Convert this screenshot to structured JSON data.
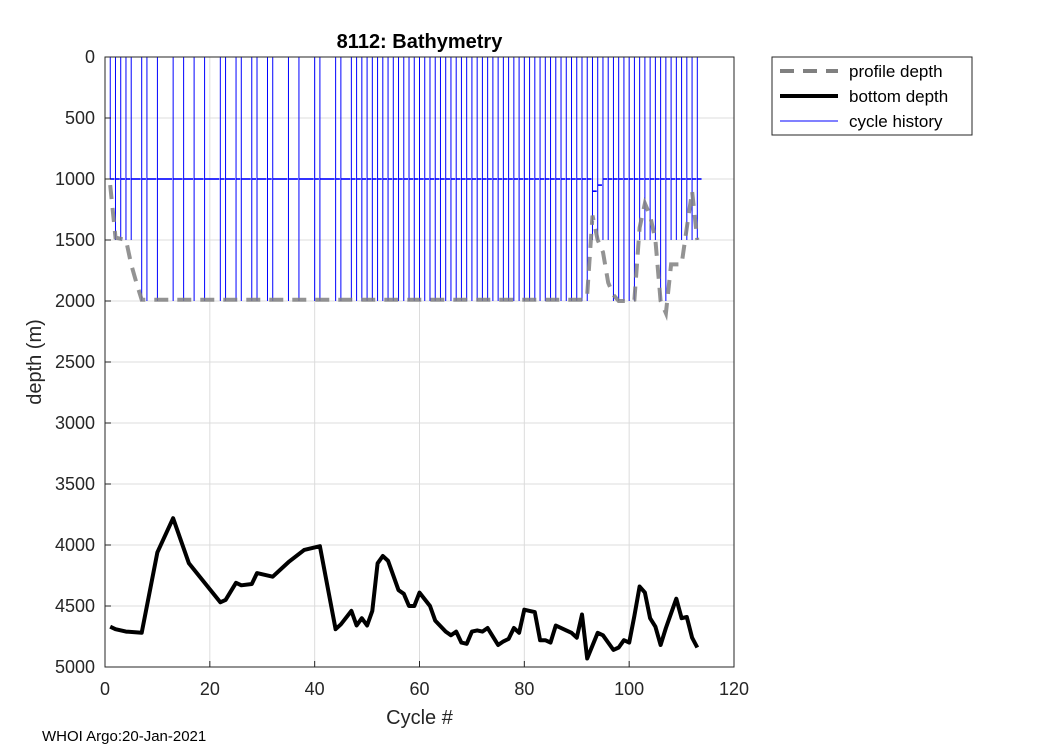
{
  "chart_data": {
    "type": "line",
    "title": "8112: Bathymetry",
    "xlabel": "Cycle #",
    "ylabel": "depth (m)",
    "xlim": [
      0,
      120
    ],
    "ylim": [
      0,
      5000
    ],
    "y_reversed": true,
    "grid": true,
    "xticks": [
      0,
      20,
      40,
      60,
      80,
      100,
      120
    ],
    "yticks": [
      0,
      500,
      1000,
      1500,
      2000,
      2500,
      3000,
      3500,
      4000,
      4500,
      5000
    ],
    "colors": {
      "profile": "#808080",
      "bottom": "#000000",
      "cycle": "#0000ff"
    },
    "series": [
      {
        "name": "profile depth",
        "style": "dashed",
        "x": [
          1,
          2,
          3,
          4,
          5,
          6,
          7,
          8,
          10,
          13,
          20,
          25,
          30,
          35,
          40,
          45,
          50,
          55,
          60,
          65,
          70,
          75,
          80,
          85,
          90,
          91.5,
          92,
          93,
          94,
          95,
          96,
          97,
          98,
          99,
          100,
          101,
          102,
          103,
          104,
          105,
          106,
          107,
          108,
          109,
          110,
          111,
          112,
          113
        ],
        "values": [
          1050,
          1480,
          1490,
          1500,
          1700,
          1850,
          1990,
          1990,
          1990,
          1990,
          1990,
          1990,
          1990,
          1990,
          1990,
          1990,
          1990,
          1990,
          1990,
          1990,
          1990,
          1990,
          1990,
          1990,
          1990,
          1990,
          1950,
          1300,
          1500,
          1600,
          1850,
          1950,
          2000,
          2000,
          2000,
          1990,
          1400,
          1200,
          1300,
          1500,
          2000,
          2100,
          1700,
          1700,
          1700,
          1400,
          1100,
          1500
        ]
      },
      {
        "name": "bottom depth",
        "style": "solid",
        "x": [
          1,
          2,
          4,
          7,
          10,
          13,
          16,
          22,
          23,
          25,
          26,
          28,
          29,
          32,
          35,
          38,
          41,
          44,
          45,
          47,
          48,
          49,
          50,
          51,
          52,
          53,
          54,
          56,
          57,
          58,
          59,
          60,
          62,
          63,
          65,
          66,
          67,
          68,
          69,
          70,
          71,
          72,
          73,
          75,
          76,
          77,
          78,
          79,
          80,
          81,
          82,
          83,
          84,
          85,
          86,
          88,
          89,
          90,
          91,
          92,
          94,
          95,
          96,
          97,
          98,
          99,
          100,
          101,
          102,
          103,
          104,
          105,
          106,
          107,
          108,
          109,
          110,
          111,
          112,
          113
        ],
        "values": [
          4670,
          4690,
          4710,
          4720,
          4060,
          3780,
          4150,
          4470,
          4450,
          4310,
          4330,
          4320,
          4230,
          4260,
          4140,
          4040,
          4010,
          4690,
          4650,
          4540,
          4660,
          4600,
          4660,
          4540,
          4150,
          4090,
          4130,
          4370,
          4400,
          4500,
          4500,
          4390,
          4500,
          4620,
          4710,
          4740,
          4710,
          4800,
          4810,
          4710,
          4700,
          4710,
          4680,
          4820,
          4790,
          4770,
          4680,
          4720,
          4530,
          4540,
          4550,
          4780,
          4780,
          4800,
          4660,
          4700,
          4720,
          4760,
          4570,
          4930,
          4720,
          4740,
          4800,
          4860,
          4840,
          4780,
          4800,
          4580,
          4340,
          4390,
          4600,
          4670,
          4820,
          4680,
          4560,
          4440,
          4600,
          4590,
          4760,
          4840
        ]
      },
      {
        "name": "cycle history",
        "style": "thin",
        "x": [
          1,
          2,
          3,
          4,
          5,
          7,
          8,
          10,
          13,
          15,
          17,
          19,
          22,
          23,
          25,
          26,
          28,
          29,
          31,
          32,
          35,
          37,
          40,
          41,
          44,
          45,
          47,
          48,
          49,
          50,
          51,
          52,
          53,
          54,
          55,
          56,
          57,
          58,
          59,
          60,
          61,
          62,
          63,
          64,
          65,
          66,
          67,
          68,
          69,
          70,
          71,
          72,
          73,
          74,
          75,
          76,
          77,
          78,
          79,
          80,
          81,
          82,
          83,
          84,
          85,
          86,
          87,
          88,
          89,
          90,
          91,
          92,
          93,
          94,
          95,
          96,
          97,
          98,
          99,
          100,
          101,
          102,
          103,
          104,
          105,
          106,
          107,
          108,
          109,
          110,
          111,
          112,
          113
        ],
        "values": [
          1000,
          1500,
          1500,
          1500,
          1500,
          2000,
          2000,
          2000,
          2000,
          2000,
          2000,
          2000,
          2000,
          2000,
          2000,
          2000,
          2000,
          2000,
          2000,
          2000,
          2000,
          2000,
          2000,
          2000,
          2000,
          2000,
          2000,
          2000,
          2000,
          2000,
          2000,
          2000,
          2000,
          2000,
          2000,
          2000,
          2000,
          2000,
          2000,
          2000,
          2000,
          2000,
          2000,
          2000,
          2000,
          2000,
          2000,
          2000,
          2000,
          2000,
          2000,
          2000,
          2000,
          2000,
          2000,
          2000,
          2000,
          2000,
          2000,
          2000,
          2000,
          2000,
          2000,
          2000,
          2000,
          2000,
          2000,
          2000,
          2000,
          2000,
          2000,
          2000,
          1500,
          1500,
          1500,
          1500,
          2000,
          2000,
          2000,
          2000,
          2000,
          1500,
          1500,
          1500,
          1500,
          2000,
          2000,
          1500,
          1500,
          1500,
          1500,
          1500,
          1500
        ],
        "park_depths": [
          1000,
          1000,
          1000,
          1000,
          1000,
          1000,
          1000,
          1000,
          1000,
          1000,
          1000,
          1000,
          1000,
          1000,
          1000,
          1000,
          1000,
          1000,
          1000,
          1000,
          1000,
          1000,
          1000,
          1000,
          1000,
          1000,
          1000,
          1000,
          1000,
          1000,
          1000,
          1000,
          1000,
          1000,
          1000,
          1000,
          1000,
          1000,
          1000,
          1000,
          1000,
          1000,
          1000,
          1000,
          1000,
          1000,
          1000,
          1000,
          1000,
          1000,
          1000,
          1000,
          1000,
          1000,
          1000,
          1000,
          1000,
          1000,
          1000,
          1000,
          1000,
          1000,
          1000,
          1000,
          1000,
          1000,
          1000,
          1000,
          1000,
          1000,
          1000,
          1000,
          1100,
          1050,
          1000,
          1000,
          1000,
          1000,
          1000,
          1000,
          1000,
          1000,
          1000,
          1000,
          1000,
          1000,
          1000,
          1000,
          1000,
          1000,
          1000,
          1000,
          1000
        ]
      }
    ],
    "legend": [
      "profile depth",
      "bottom depth",
      "cycle history"
    ],
    "legend_position": "outside-top-right"
  },
  "footer": "WHOI Argo:20-Jan-2021"
}
